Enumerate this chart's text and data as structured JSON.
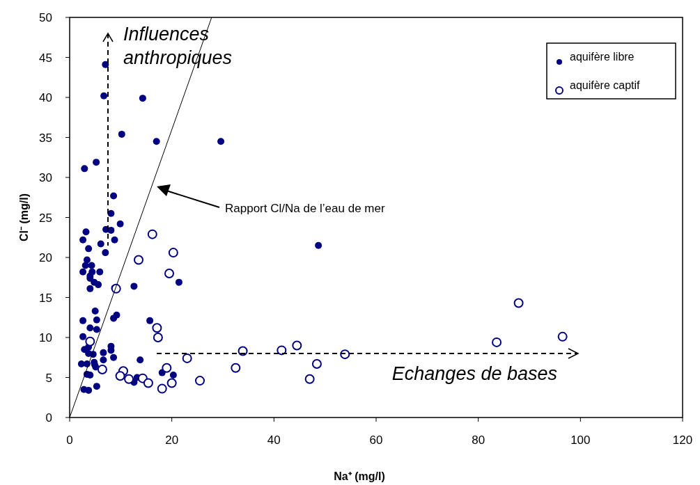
{
  "chart_data": {
    "type": "scatter",
    "xlabel": "Na⁺ (mg/l)",
    "ylabel": "Cl⁻ (mg/l)",
    "xlim": [
      0,
      120
    ],
    "xticks": [
      0,
      20,
      40,
      60,
      80,
      100,
      120
    ],
    "ylim": [
      0,
      50
    ],
    "yticks": [
      0,
      5,
      10,
      15,
      20,
      25,
      30,
      35,
      40,
      45,
      50
    ],
    "grid": false,
    "legend": "top right",
    "series": [
      {
        "name": "aquifère libre",
        "color": "#000080",
        "marker": "circle",
        "x": [
          7.0,
          6.7,
          14.3,
          10.2,
          17.0,
          29.6,
          5.2,
          2.9,
          8.6,
          8.1,
          9.9,
          3.2,
          7.1,
          8.1,
          2.6,
          8.8,
          6.1,
          3.7,
          7.0,
          3.4,
          3.1,
          4.3,
          2.6,
          4.4,
          5.9,
          4.0,
          4.0,
          4.8,
          5.6,
          4.0,
          8.8,
          12.6,
          21.4,
          48.7,
          5.0,
          2.6,
          5.3,
          4.0,
          5.3,
          8.6,
          9.2,
          15.7,
          2.6,
          2.9,
          3.7,
          3.7,
          4.6,
          8.1,
          8.1,
          6.6,
          6.6,
          8.6,
          13.8,
          2.3,
          3.4,
          4.8,
          4.9,
          5.1,
          3.4,
          4.0,
          18.1,
          20.3,
          13.2,
          12.6,
          2.8,
          3.7,
          5.3
        ],
        "values": [
          44.1,
          40.2,
          39.9,
          35.4,
          34.5,
          34.5,
          31.9,
          31.1,
          27.7,
          25.5,
          24.2,
          23.2,
          23.5,
          23.4,
          22.2,
          22.2,
          21.7,
          21.1,
          20.6,
          19.7,
          19.0,
          19.0,
          18.2,
          18.2,
          18.2,
          17.7,
          17.4,
          16.9,
          16.6,
          16.1,
          16.2,
          16.4,
          16.9,
          21.5,
          13.3,
          12.1,
          12.2,
          11.2,
          11.0,
          12.4,
          12.8,
          12.1,
          10.1,
          8.5,
          8.8,
          8.0,
          7.9,
          8.9,
          8.4,
          8.1,
          7.2,
          7.5,
          7.2,
          6.7,
          6.7,
          6.9,
          6.6,
          6.3,
          5.4,
          5.3,
          5.6,
          5.3,
          5.0,
          4.4,
          3.5,
          3.4,
          3.9
        ]
      },
      {
        "name": "aquifère captif",
        "color": "#000080",
        "marker": "open circle",
        "x": [
          16.2,
          20.3,
          13.5,
          19.5,
          9.1,
          17.1,
          17.3,
          4.0,
          23.0,
          6.4,
          10.5,
          9.9,
          11.6,
          14.3,
          15.4,
          19.0,
          20.0,
          18.1,
          25.5,
          33.9,
          32.5,
          41.5,
          44.5,
          48.4,
          47.0,
          53.9,
          87.9,
          83.6,
          96.5
        ],
        "values": [
          22.9,
          20.6,
          19.7,
          18.0,
          16.1,
          11.2,
          10.0,
          9.5,
          7.4,
          6.0,
          5.8,
          5.2,
          4.8,
          4.9,
          4.3,
          6.2,
          4.3,
          3.6,
          4.6,
          8.3,
          6.2,
          8.4,
          9.0,
          6.7,
          4.8,
          7.9,
          14.3,
          9.4,
          10.1
        ]
      },
      {
        "type": "line",
        "color": "#000000",
        "x": [
          0,
          27.8
        ],
        "values": [
          0,
          50
        ]
      }
    ],
    "annotations": [
      "Influences anthropiques",
      "Rapport Cl/Na de l’eau de mer",
      "Echanges de bases"
    ]
  }
}
